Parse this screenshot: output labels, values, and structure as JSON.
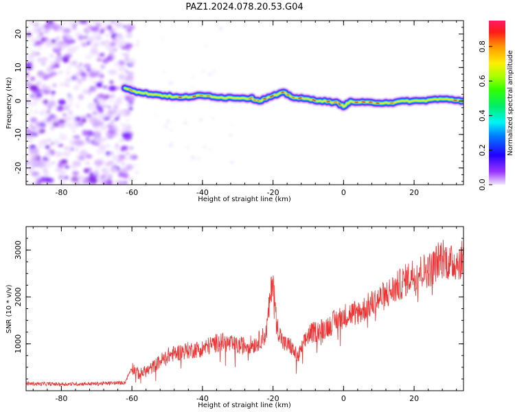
{
  "title": "PAZ1.2024.078.20.53.G04",
  "chart_data": [
    {
      "type": "heatmap",
      "xlabel": "Height of straight line (km)",
      "ylabel": "Frequency (Hz)",
      "xlim": [
        -90,
        34
      ],
      "ylim": [
        -25,
        24
      ],
      "xticks": [
        -80,
        -60,
        -40,
        -20,
        0,
        20
      ],
      "yticks": [
        -20,
        -10,
        0,
        10,
        20
      ],
      "colorbar": {
        "label": "Normalized spectral amplitude",
        "range": [
          0,
          0.95
        ],
        "ticks": [
          0.0,
          0.2,
          0.4,
          0.6,
          0.8
        ],
        "colormap": "gist_ncar-like (light violet → blue → cyan → green → yellow → red → magenta)"
      },
      "signal_frequency_track": {
        "x": [
          -62,
          -58,
          -54,
          -50,
          -46,
          -42,
          -38,
          -34,
          -30,
          -26,
          -24,
          -20,
          -17,
          -14,
          -10,
          -6,
          -2,
          0,
          2,
          6,
          10,
          14,
          18,
          22,
          26,
          30,
          34
        ],
        "y": [
          4.0,
          2.5,
          2.0,
          1.5,
          1.0,
          1.5,
          1.5,
          1.0,
          1.0,
          0.8,
          0.0,
          1.5,
          2.5,
          1.0,
          0.5,
          0.0,
          -0.5,
          -1.5,
          -0.2,
          -0.5,
          -0.5,
          -0.5,
          0.0,
          0.0,
          0.5,
          0.5,
          0.0
        ]
      },
      "noise_region_x": [
        -90,
        -60
      ]
    },
    {
      "type": "line",
      "xlabel": "Height of straight line (km)",
      "ylabel": "SNR (10 * v/v)",
      "xlim": [
        -90,
        34
      ],
      "ylim": [
        0,
        3500
      ],
      "xticks": [
        -80,
        -60,
        -40,
        -20,
        0,
        20
      ],
      "yticks": [
        1000,
        2000,
        3000
      ],
      "series": [
        {
          "color": "#ee3333",
          "x": [
            -90,
            -80,
            -70,
            -62,
            -60,
            -58,
            -55,
            -50,
            -45,
            -40,
            -35,
            -30,
            -25,
            -22,
            -20,
            -19,
            -17,
            -15,
            -13,
            -10,
            -5,
            0,
            5,
            10,
            15,
            20,
            25,
            28,
            30,
            34
          ],
          "y": [
            150,
            140,
            150,
            170,
            500,
            350,
            450,
            750,
            850,
            900,
            1050,
            950,
            1000,
            1200,
            2450,
            1400,
            1000,
            950,
            700,
            1200,
            1350,
            1600,
            1700,
            1950,
            2200,
            2500,
            2600,
            2900,
            2700,
            2800
          ]
        }
      ]
    }
  ]
}
